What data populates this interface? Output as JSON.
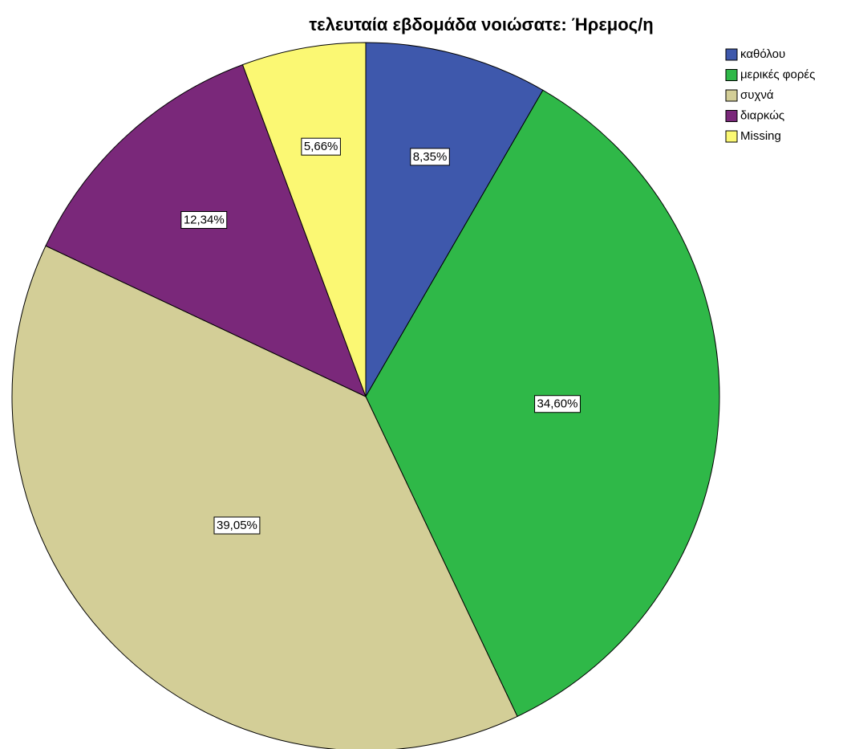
{
  "chart_data": {
    "type": "pie",
    "title": "τελευταία εβδομάδα νοιώσατε: Ήρεμος/η",
    "categories": [
      "καθόλου",
      "μερικές φορές",
      "συχνά",
      "διαρκώς",
      "Missing"
    ],
    "values": [
      8.35,
      34.6,
      39.05,
      12.34,
      5.66
    ],
    "value_labels": [
      "8,35%",
      "34,60%",
      "39,05%",
      "12,34%",
      "5,66%"
    ],
    "colors": [
      "#3e58ac",
      "#2fb848",
      "#d3ce97",
      "#7a287a",
      "#fbf873"
    ],
    "legend": "top-right"
  }
}
